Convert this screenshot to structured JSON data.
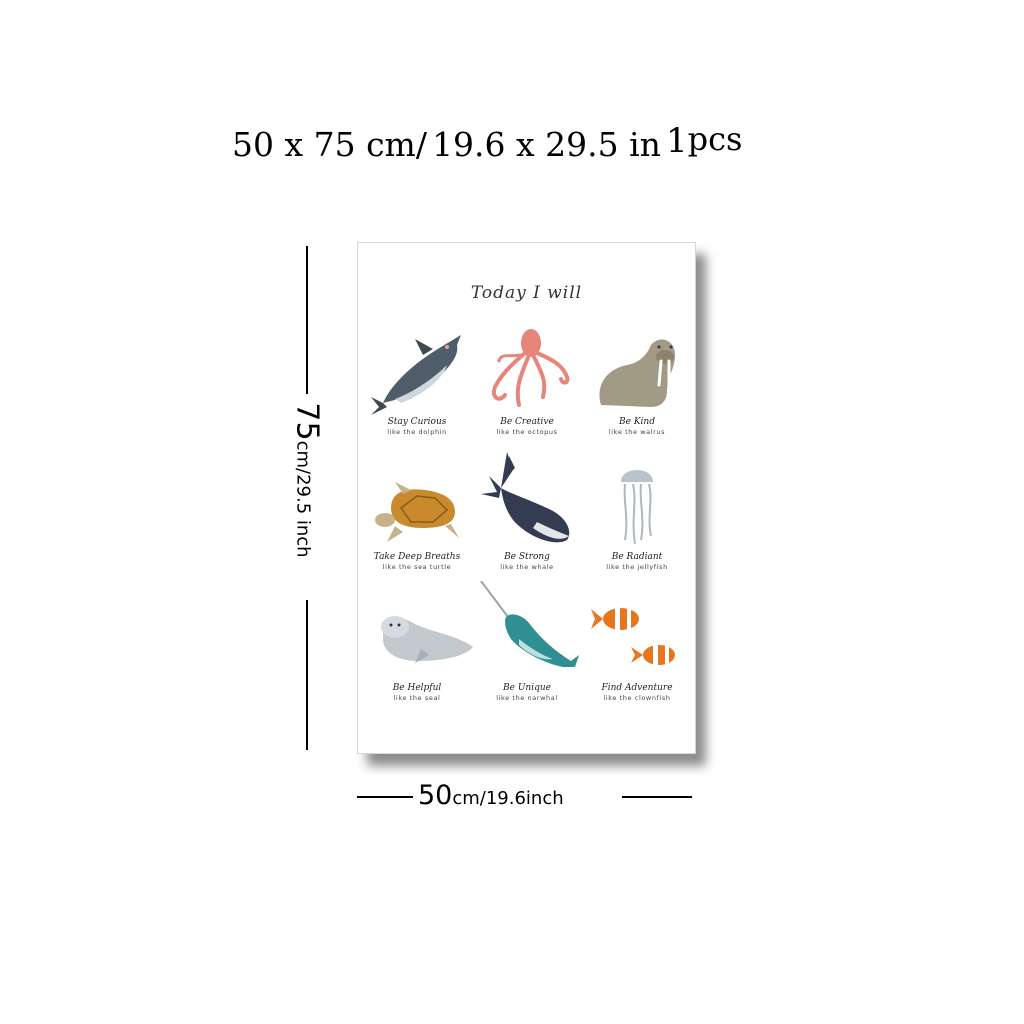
{
  "headline": {
    "size_cm": "50 x 75 cm/",
    "size_in": "19.6  x  29.5 in",
    "quantity": "1",
    "unit": "pcs"
  },
  "poster": {
    "title": "Today I will",
    "items": [
      {
        "animal": "dolphin",
        "line1": "Stay Curious",
        "line2": "like the dolphin"
      },
      {
        "animal": "octopus",
        "line1": "Be Creative",
        "line2": "like the octopus"
      },
      {
        "animal": "walrus",
        "line1": "Be Kind",
        "line2": "like the walrus"
      },
      {
        "animal": "sea turtle",
        "line1": "Take Deep Breaths",
        "line2": "like the sea turtle"
      },
      {
        "animal": "whale",
        "line1": "Be Strong",
        "line2": "like the whale"
      },
      {
        "animal": "jellyfish",
        "line1": "Be Radiant",
        "line2": "like the jellyfish"
      },
      {
        "animal": "seal",
        "line1": "Be Helpful",
        "line2": "like the seal"
      },
      {
        "animal": "narwhal",
        "line1": "Be Unique",
        "line2": "like the narwhal"
      },
      {
        "animal": "clownfish",
        "line1": "Find Adventure",
        "line2": "like the clownfish"
      }
    ]
  },
  "height_dim": {
    "number": "75",
    "unit": "cm/29.5 inch"
  },
  "width_dim": {
    "number": "50",
    "unit": "cm/19.6inch"
  }
}
